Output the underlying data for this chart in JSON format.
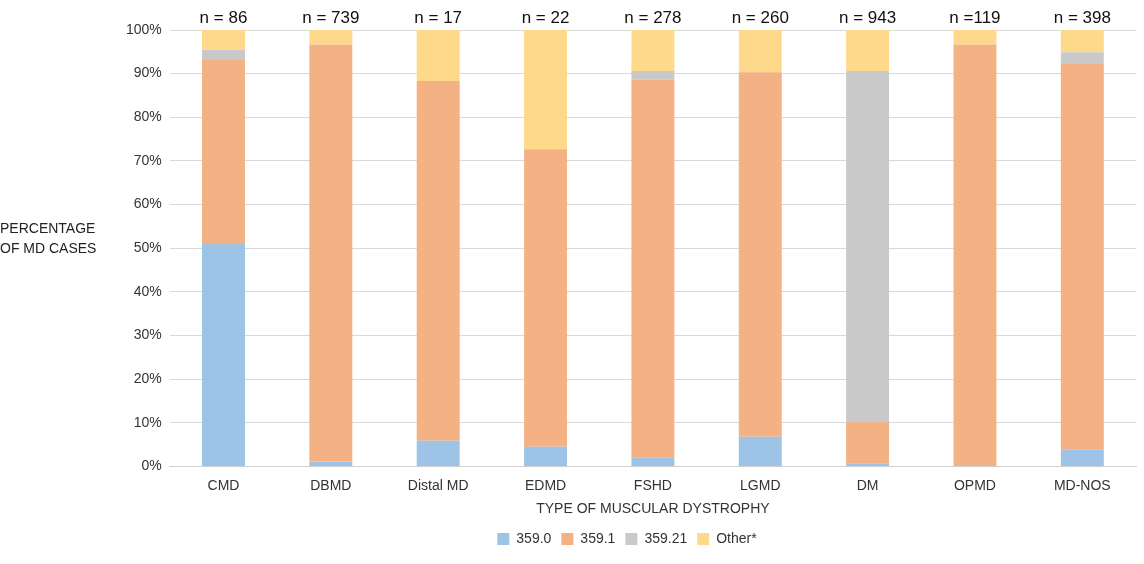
{
  "chart_data": {
    "type": "bar",
    "stacked": true,
    "xlabel": "TYPE OF MUSCULAR DYSTROPHY",
    "ylabel": "PERCENTAGE OF MD CASES",
    "categories": [
      "CMD",
      "DBMD",
      "Distal MD",
      "EDMD",
      "FSHD",
      "LGMD",
      "DM",
      "OPMD",
      "MD-NOS"
    ],
    "series": [
      {
        "name": "359.0",
        "color": "#9dc3e6",
        "values": [
          51.2,
          1.1,
          5.9,
          4.5,
          2.0,
          6.8,
          0.6,
          0,
          3.8
        ]
      },
      {
        "name": "359.1",
        "color": "#f4b183",
        "values": [
          41.9,
          95.6,
          82.4,
          68.2,
          86.6,
          83.5,
          9.5,
          96.7,
          88.6
        ]
      },
      {
        "name": "359.21",
        "color": "#c9c9c9",
        "values": [
          2.4,
          0,
          0,
          0,
          2.0,
          0,
          80.5,
          0,
          2.5
        ]
      },
      {
        "name": "Other*",
        "color": "#ffd98a",
        "values": [
          4.5,
          3.3,
          11.7,
          27.3,
          9.4,
          9.7,
          9.4,
          3.3,
          5.1
        ]
      }
    ],
    "ylim": [
      0,
      100
    ],
    "yticks": [
      {
        "value": 0,
        "label": "0%"
      },
      {
        "value": 10,
        "label": "10%"
      },
      {
        "value": 20,
        "label": "20%"
      },
      {
        "value": 30,
        "label": "30%"
      },
      {
        "value": 40,
        "label": "40%"
      },
      {
        "value": 50,
        "label": "50%"
      },
      {
        "value": 60,
        "label": "60%"
      },
      {
        "value": 70,
        "label": "70%"
      },
      {
        "value": 80,
        "label": "80%"
      },
      {
        "value": 90,
        "label": "90%"
      },
      {
        "value": 100,
        "label": "100%"
      }
    ],
    "grid": "y",
    "legend": "bottom",
    "annotations": [
      {
        "text": "n = 86",
        "x": "CMD",
        "y": 100
      },
      {
        "text": "n = 739",
        "x": "DBMD",
        "y": 100
      },
      {
        "text": "n = 17",
        "x": "Distal MD",
        "y": 100
      },
      {
        "text": "n = 22",
        "x": "EDMD",
        "y": 100
      },
      {
        "text": "n = 278",
        "x": "FSHD",
        "y": 100
      },
      {
        "text": "n = 260",
        "x": "LGMD",
        "y": 100
      },
      {
        "text": "n = 943",
        "x": "DM",
        "y": 100
      },
      {
        "text": "n =119",
        "x": "OPMD",
        "y": 100
      },
      {
        "text": "n = 398",
        "x": "MD-NOS",
        "y": 100
      }
    ]
  }
}
